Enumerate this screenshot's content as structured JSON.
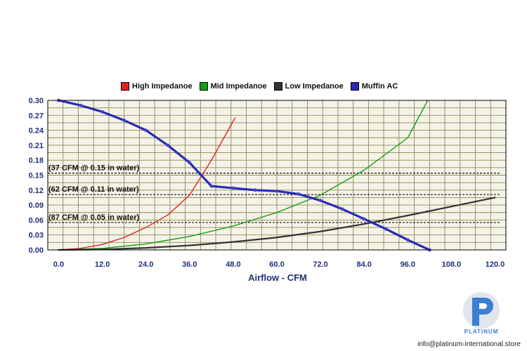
{
  "chart_data": {
    "type": "line",
    "title": "",
    "xlabel": "Airflow - CFM",
    "ylabel": "",
    "xlim": [
      -3,
      123
    ],
    "ylim": [
      0,
      0.3
    ],
    "x_ticks": [
      "0.0",
      "12.0",
      "24.0",
      "36.0",
      "48.0",
      "60.0",
      "72.0",
      "84.0",
      "96.0",
      "108.0",
      "120.0"
    ],
    "y_ticks": [
      "0.00",
      "0.03",
      "0.06",
      "0.09",
      "0.12",
      "0.15",
      "0.18",
      "0.21",
      "0.24",
      "0.27",
      "0.30"
    ],
    "grid": true,
    "legend_position": "top",
    "series": [
      {
        "name": "High Impedanoe",
        "color": "#e02020",
        "x": [
          0,
          6,
          12,
          18,
          24,
          30,
          36,
          42,
          48.5
        ],
        "y": [
          0,
          0.003,
          0.011,
          0.025,
          0.045,
          0.07,
          0.11,
          0.18,
          0.265
        ]
      },
      {
        "name": "Mid Impedanoe",
        "color": "#11a011",
        "x": [
          0,
          12,
          24,
          36,
          48,
          60,
          72,
          84,
          96,
          101.5
        ],
        "y": [
          0,
          0.003,
          0.012,
          0.027,
          0.048,
          0.075,
          0.11,
          0.16,
          0.225,
          0.3
        ]
      },
      {
        "name": "Low Impedanoe",
        "color": "#333333",
        "x": [
          0,
          12,
          24,
          36,
          48,
          60,
          72,
          84,
          96,
          108,
          120
        ],
        "y": [
          0,
          0.001,
          0.004,
          0.009,
          0.016,
          0.025,
          0.037,
          0.052,
          0.069,
          0.087,
          0.105
        ]
      },
      {
        "name": "Muffin AC",
        "color": "#2a2ab5",
        "x": [
          0,
          6,
          12,
          18,
          24,
          30,
          36,
          42,
          48,
          54,
          60,
          66,
          72,
          78,
          84,
          90,
          96,
          102
        ],
        "y": [
          0.3,
          0.29,
          0.277,
          0.26,
          0.24,
          0.21,
          0.175,
          0.128,
          0.124,
          0.12,
          0.118,
          0.112,
          0.099,
          0.082,
          0.062,
          0.042,
          0.02,
          0.0
        ]
      }
    ],
    "reference_lines": [
      {
        "label": "(37 CFM @ 0.15 in water)",
        "y": 0.154
      },
      {
        "label": "(62 CFM @ 0.11 in water)",
        "y": 0.111
      },
      {
        "label": "(87 CFM @ 0.05 in water)",
        "y": 0.055
      }
    ]
  },
  "branding": {
    "logo_text": "PLATINUM",
    "email": "info@platinum-international.store",
    "logo_color": "#3a7fd0"
  }
}
